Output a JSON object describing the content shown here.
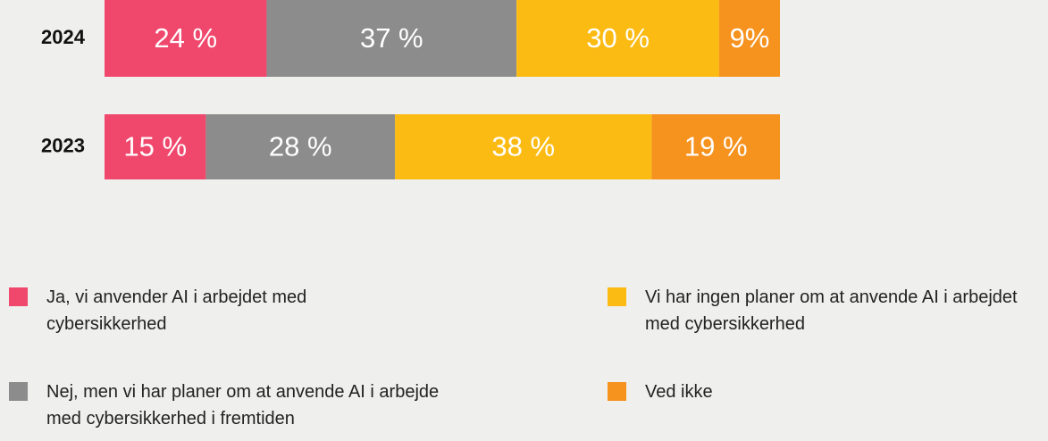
{
  "chart_data": {
    "type": "stacked-bar-horizontal",
    "categories": [
      "2024",
      "2023"
    ],
    "series": [
      {
        "name": "Ja, vi anvender AI i arbejdet med cybersikkerhed",
        "color": "#f0476c",
        "values": [
          24,
          15
        ],
        "value_labels": [
          "24 %",
          "15 %"
        ]
      },
      {
        "name": "Nej, men vi har planer om at anvende AI i arbejde med cybersikkerhed i fremtiden",
        "color": "#8c8c8c",
        "values": [
          37,
          28
        ],
        "value_labels": [
          "37 %",
          "28 %"
        ]
      },
      {
        "name": "Vi har ingen planer om at anvende AI i arbejdet med cybersikkerhed",
        "color": "#fcbb13",
        "values": [
          30,
          38
        ],
        "value_labels": [
          "30 %",
          "38 %"
        ]
      },
      {
        "name": "Ved ikke",
        "color": "#f6921e",
        "values": [
          9,
          19
        ],
        "value_labels": [
          "9%",
          "19 %"
        ]
      }
    ]
  }
}
